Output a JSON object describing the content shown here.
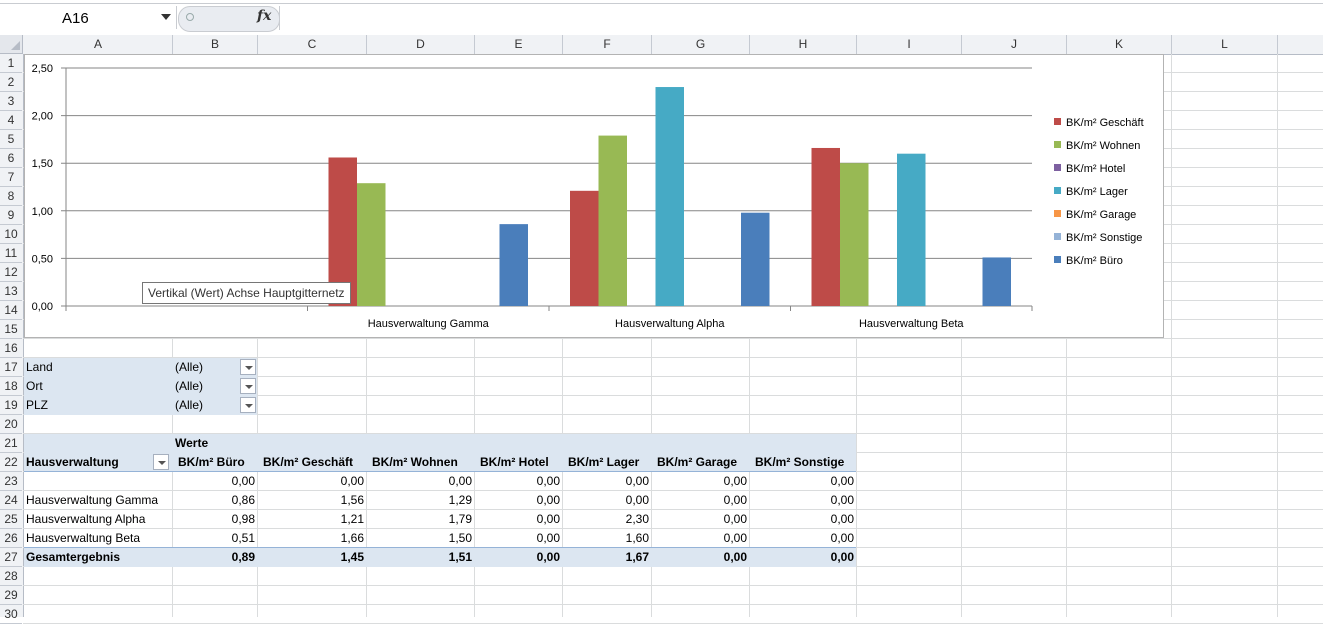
{
  "namebox": {
    "value": "A16"
  },
  "formula": {
    "fx_label": "fx",
    "value": ""
  },
  "columns": [
    "A",
    "B",
    "C",
    "D",
    "E",
    "F",
    "G",
    "H",
    "I",
    "J",
    "K",
    "L"
  ],
  "rows": [
    "1",
    "2",
    "3",
    "4",
    "5",
    "6",
    "7",
    "8",
    "9",
    "10",
    "11",
    "12",
    "13",
    "14",
    "15",
    "16",
    "17",
    "18",
    "19",
    "20",
    "21",
    "22",
    "23",
    "24",
    "25",
    "26",
    "27",
    "28",
    "29",
    "30"
  ],
  "filters": [
    {
      "label": "Land",
      "value": "(Alle)"
    },
    {
      "label": "Ort",
      "value": "(Alle)"
    },
    {
      "label": "PLZ",
      "value": "(Alle)"
    }
  ],
  "pivot": {
    "werte_label": "Werte",
    "row_header": "Hausverwaltung",
    "headers": [
      "BK/m² Büro",
      "BK/m² Geschäft",
      "BK/m² Wohnen",
      "BK/m² Hotel",
      "BK/m² Lager",
      "BK/m² Garage",
      "BK/m² Sonstige"
    ],
    "rows": [
      {
        "label": "",
        "values": [
          "0,00",
          "0,00",
          "0,00",
          "0,00",
          "0,00",
          "0,00",
          "0,00"
        ]
      },
      {
        "label": "Hausverwaltung Gamma",
        "values": [
          "0,86",
          "1,56",
          "1,29",
          "0,00",
          "0,00",
          "0,00",
          "0,00"
        ]
      },
      {
        "label": "Hausverwaltung Alpha",
        "values": [
          "0,98",
          "1,21",
          "1,79",
          "0,00",
          "2,30",
          "0,00",
          "0,00"
        ]
      },
      {
        "label": "Hausverwaltung Beta",
        "values": [
          "0,51",
          "1,66",
          "1,50",
          "0,00",
          "1,60",
          "0,00",
          "0,00"
        ]
      }
    ],
    "total": {
      "label": "Gesamtergebnis",
      "values": [
        "0,89",
        "1,45",
        "1,51",
        "0,00",
        "1,67",
        "0,00",
        "0,00"
      ]
    }
  },
  "tooltip": "Vertikal (Wert) Achse Hauptgitternetz",
  "chart_data": {
    "type": "bar",
    "categories": [
      "",
      "Hausverwaltung Gamma",
      "Hausverwaltung Alpha",
      "Hausverwaltung Beta"
    ],
    "ylim": [
      0,
      2.5
    ],
    "yticks": [
      "0,00",
      "0,50",
      "1,00",
      "1,50",
      "2,00",
      "2,50"
    ],
    "grid": true,
    "legend_position": "right",
    "series": [
      {
        "name": "BK/m² Geschäft",
        "color": "#be4b48",
        "values": [
          0,
          1.56,
          1.21,
          1.66
        ]
      },
      {
        "name": "BK/m² Wohnen",
        "color": "#98b954",
        "values": [
          0,
          1.29,
          1.79,
          1.5
        ]
      },
      {
        "name": "BK/m² Hotel",
        "color": "#7d60a0",
        "values": [
          0,
          0,
          0,
          0
        ]
      },
      {
        "name": "BK/m² Lager",
        "color": "#46aac5",
        "values": [
          0,
          0,
          2.3,
          1.6
        ]
      },
      {
        "name": "BK/m² Garage",
        "color": "#f79646",
        "values": [
          0,
          0,
          0,
          0
        ]
      },
      {
        "name": "BK/m² Sonstige",
        "color": "#95b3d7",
        "values": [
          0,
          0,
          0,
          0
        ]
      },
      {
        "name": "BK/m² Büro",
        "color": "#4a7ebb",
        "values": [
          0,
          0.86,
          0.98,
          0.51
        ]
      }
    ]
  }
}
